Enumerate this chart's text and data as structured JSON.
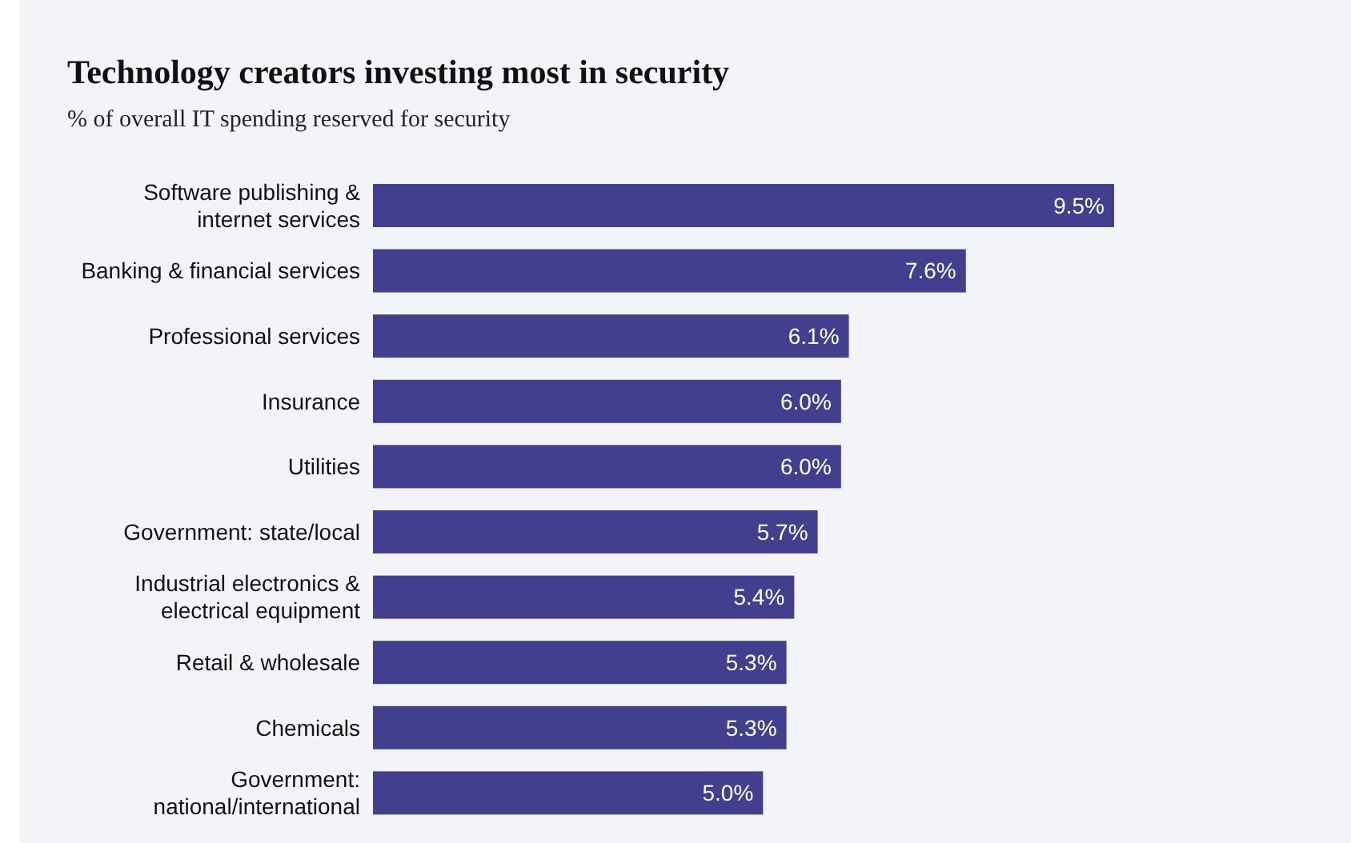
{
  "chart_data": {
    "type": "bar",
    "orientation": "horizontal",
    "title": "Technology creators investing most in security",
    "subtitle": "% of overall IT spending reserved for security",
    "categories": [
      "Software publishing &\ninternet services",
      "Banking & financial services",
      "Professional services",
      "Insurance",
      "Utilities",
      "Government: state/local",
      "Industrial electronics &\nelectrical equipment",
      "Retail & wholesale",
      "Chemicals",
      "Government:\nnational/international"
    ],
    "values": [
      9.5,
      7.6,
      6.1,
      6.0,
      6.0,
      5.7,
      5.4,
      5.3,
      5.3,
      5.0
    ],
    "value_labels": [
      "9.5%",
      "7.6%",
      "6.1%",
      "6.0%",
      "6.0%",
      "5.7%",
      "5.4%",
      "5.3%",
      "5.3%",
      "5.0%"
    ],
    "color": "#433f8f",
    "xlim": [
      0,
      9.5
    ],
    "tick_labels": "y"
  }
}
